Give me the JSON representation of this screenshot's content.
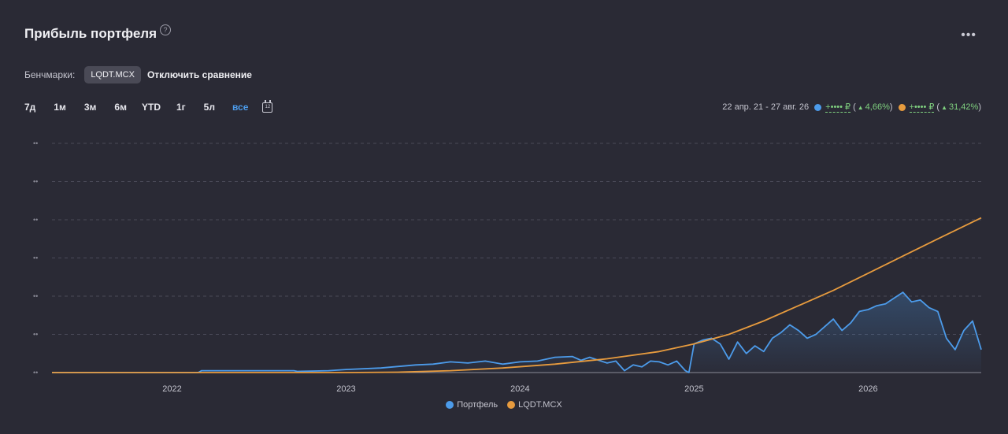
{
  "header": {
    "title": "Прибыль портфеля",
    "help_glyph": "?",
    "more_glyph": "•••"
  },
  "benchmarks": {
    "label": "Бенчмарки:",
    "chip": "LQDT.MCX",
    "disable_label": "Отключить сравнение"
  },
  "ranges": [
    {
      "label": "7д",
      "active": false
    },
    {
      "label": "1м",
      "active": false
    },
    {
      "label": "3м",
      "active": false
    },
    {
      "label": "6м",
      "active": false
    },
    {
      "label": "YTD",
      "active": false
    },
    {
      "label": "1г",
      "active": false
    },
    {
      "label": "5л",
      "active": false
    },
    {
      "label": "все",
      "active": true
    }
  ],
  "calendar_glyph": "12",
  "summary": {
    "period": "22 апр. 21 - 27 авг. 26",
    "portfolio_value": "+•••• ₽",
    "portfolio_pct": "4,66%",
    "benchmark_value": "+•••• ₽",
    "benchmark_pct": "31,42%",
    "open_paren": "(",
    "close_paren": ")"
  },
  "colors": {
    "portfolio": "#4c9bea",
    "benchmark": "#e79b3e",
    "positive": "#7fd07f"
  },
  "chart_data": {
    "type": "line",
    "x_ticks": [
      "2022",
      "2023",
      "2024",
      "2025",
      "2026"
    ],
    "y_tick_labels": [
      "••",
      "••",
      "••",
      "••",
      "••",
      "••",
      "••"
    ],
    "y_hidden_levels": [
      6,
      5,
      4,
      3,
      2,
      1,
      0,
      -1
    ],
    "grid": true,
    "legend": "bottom-center",
    "series": [
      {
        "name": "Портфель",
        "color": "#4c9bea",
        "x": [
          2021.31,
          2022.0,
          2022.15,
          2022.17,
          2022.5,
          2022.7,
          2022.72,
          2022.9,
          2023.0,
          2023.2,
          2023.4,
          2023.5,
          2023.6,
          2023.7,
          2023.8,
          2023.9,
          2024.0,
          2024.1,
          2024.2,
          2024.3,
          2024.35,
          2024.4,
          2024.5,
          2024.55,
          2024.6,
          2024.65,
          2024.7,
          2024.75,
          2024.8,
          2024.85,
          2024.9,
          2024.95,
          2024.97,
          2025.0,
          2025.05,
          2025.1,
          2025.15,
          2025.2,
          2025.25,
          2025.3,
          2025.35,
          2025.4,
          2025.45,
          2025.5,
          2025.55,
          2025.6,
          2025.65,
          2025.7,
          2025.75,
          2025.8,
          2025.85,
          2025.9,
          2025.95,
          2026.0,
          2026.05,
          2026.1,
          2026.15,
          2026.2,
          2026.25,
          2026.3,
          2026.35,
          2026.4,
          2026.45,
          2026.5,
          2026.55,
          2026.6,
          2026.65
        ],
        "y": [
          0,
          0,
          0,
          0.05,
          0.05,
          0.05,
          0.03,
          0.05,
          0.08,
          0.12,
          0.2,
          0.22,
          0.28,
          0.25,
          0.3,
          0.22,
          0.28,
          0.3,
          0.4,
          0.42,
          0.32,
          0.4,
          0.25,
          0.3,
          0.05,
          0.2,
          0.15,
          0.3,
          0.28,
          0.2,
          0.3,
          0.05,
          0.0,
          0.75,
          0.85,
          0.9,
          0.75,
          0.35,
          0.8,
          0.5,
          0.7,
          0.55,
          0.9,
          1.05,
          1.25,
          1.1,
          0.9,
          1.0,
          1.2,
          1.4,
          1.1,
          1.3,
          1.6,
          1.65,
          1.75,
          1.8,
          1.95,
          2.1,
          1.85,
          1.9,
          1.7,
          1.6,
          0.9,
          0.6,
          1.1,
          1.35,
          0.6
        ]
      },
      {
        "name": "LQDT.MCX",
        "color": "#e79b3e",
        "x": [
          2021.31,
          2022.0,
          2022.5,
          2023.0,
          2023.3,
          2023.6,
          2023.9,
          2024.2,
          2024.5,
          2024.8,
          2025.0,
          2025.2,
          2025.4,
          2025.6,
          2025.8,
          2026.0,
          2026.2,
          2026.4,
          2026.65
        ],
        "y": [
          0,
          0,
          0,
          0,
          0.01,
          0.05,
          0.12,
          0.22,
          0.36,
          0.55,
          0.75,
          1.0,
          1.35,
          1.75,
          2.15,
          2.6,
          3.05,
          3.5,
          4.05
        ]
      }
    ]
  }
}
